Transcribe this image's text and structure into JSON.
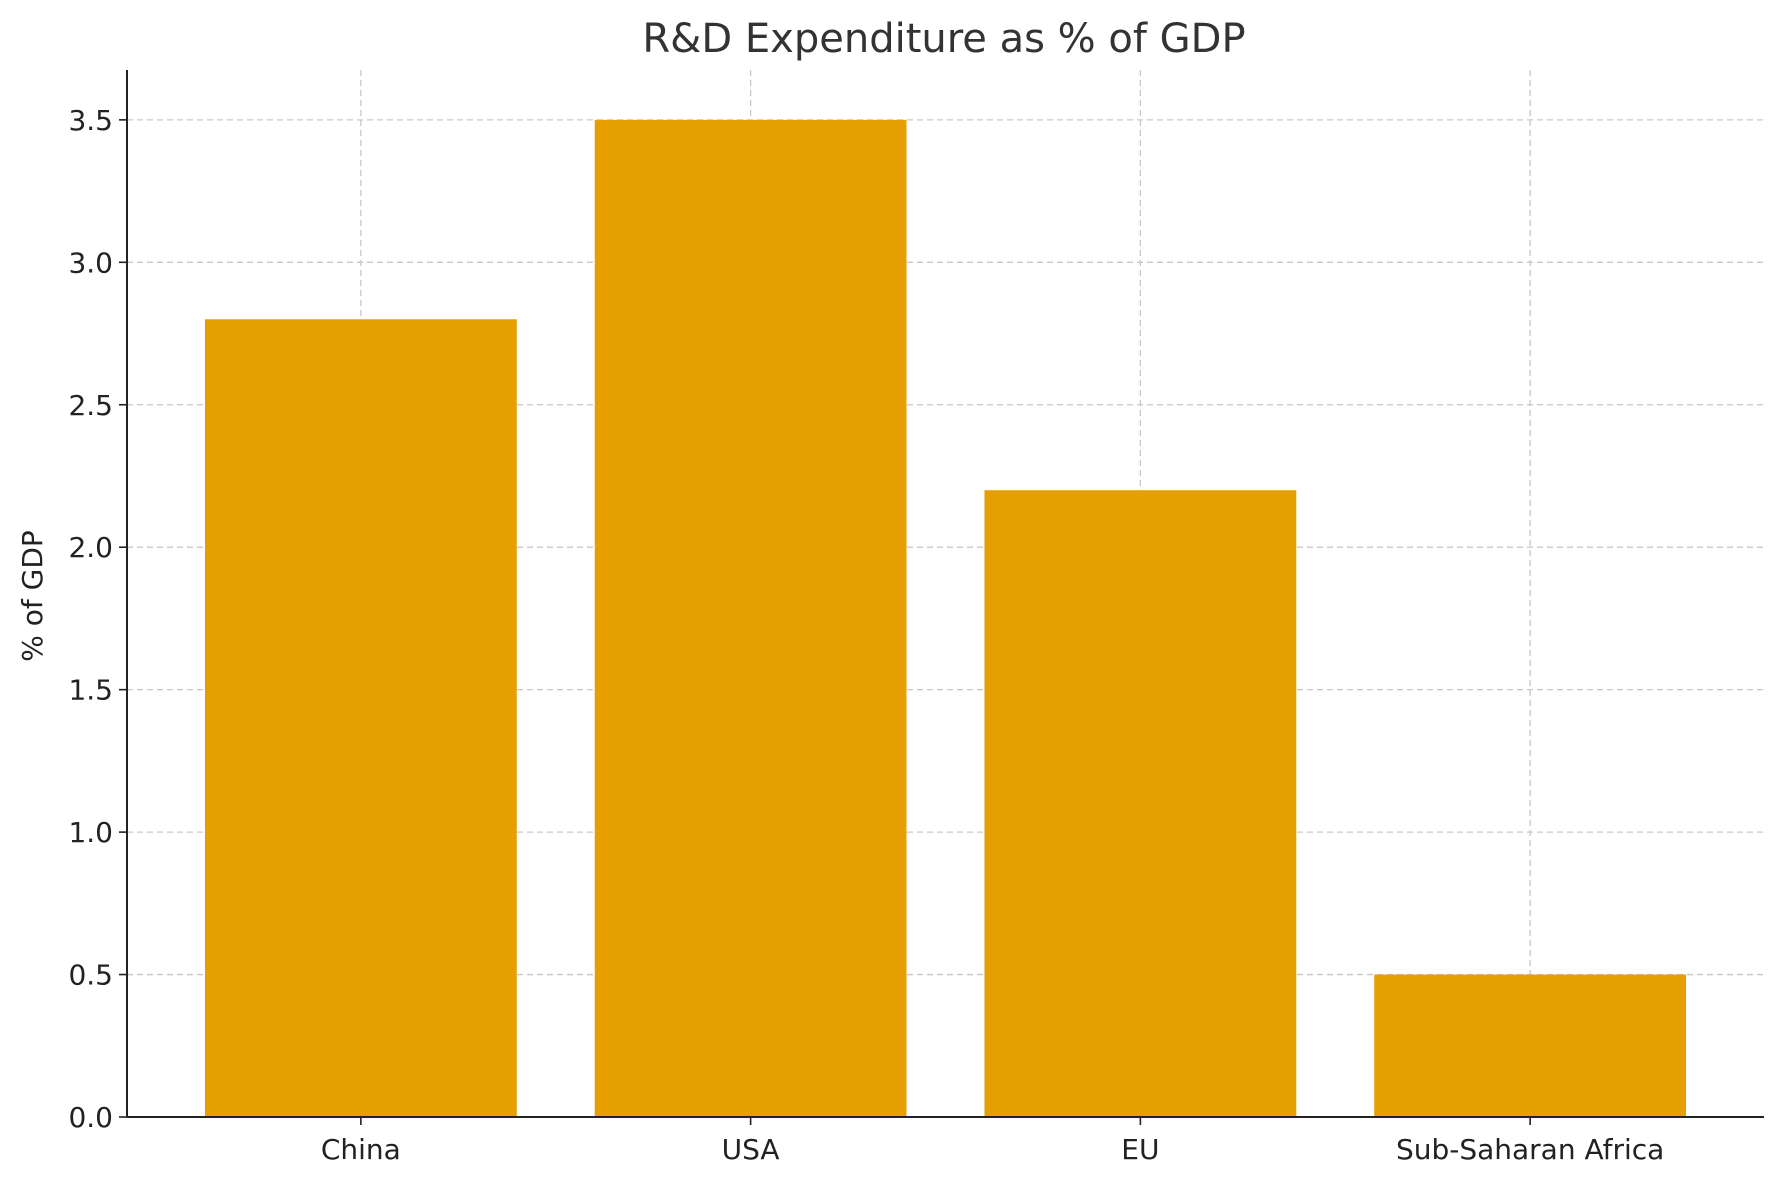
{
  "chart_data": {
    "type": "bar",
    "title": "R&D Expenditure as % of GDP",
    "xlabel": "",
    "ylabel": "% of GDP",
    "categories": [
      "China",
      "USA",
      "EU",
      "Sub-Saharan Africa"
    ],
    "values": [
      2.8,
      3.5,
      2.2,
      0.5
    ],
    "ylim": [
      0,
      3.675
    ],
    "yticks": [
      "0.0",
      "0.5",
      "1.0",
      "1.5",
      "2.0",
      "2.5",
      "3.0",
      "3.5"
    ],
    "ytick_values": [
      0,
      0.5,
      1.0,
      1.5,
      2.0,
      2.5,
      3.0,
      3.5
    ],
    "bar_color": "#e69f00",
    "grid": true,
    "legend": "none"
  }
}
